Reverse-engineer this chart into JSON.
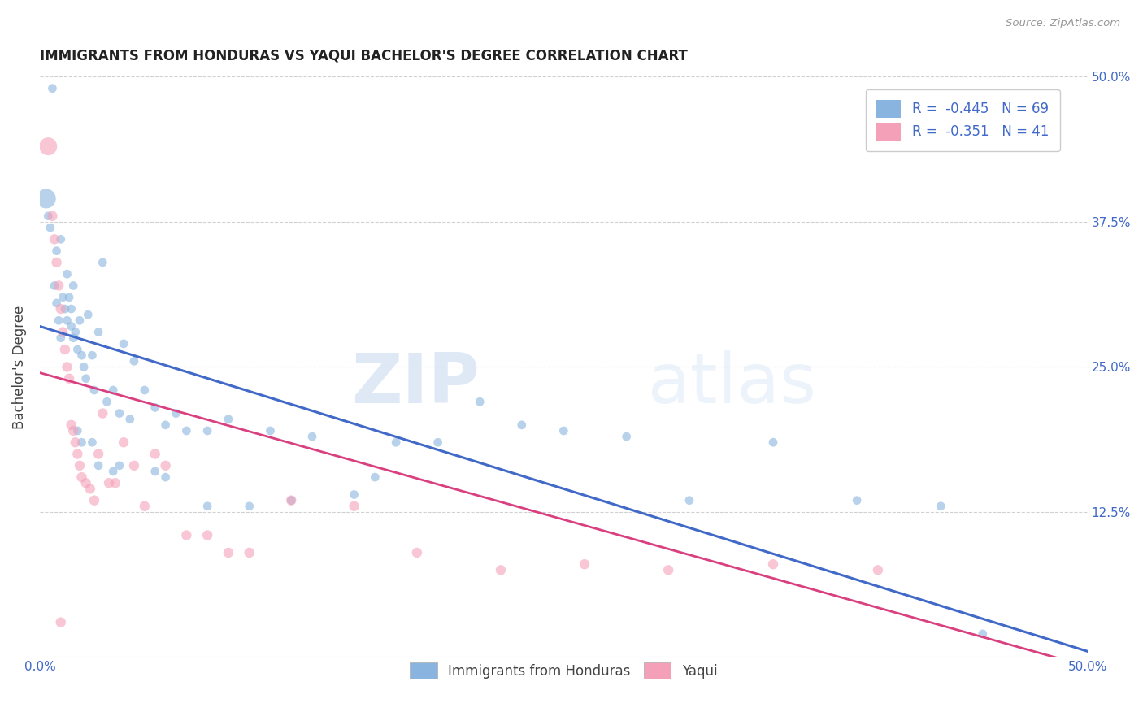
{
  "title": "IMMIGRANTS FROM HONDURAS VS YAQUI BACHELOR'S DEGREE CORRELATION CHART",
  "source": "Source: ZipAtlas.com",
  "ylabel": "Bachelor's Degree",
  "xlim": [
    0.0,
    0.5
  ],
  "ylim": [
    0.0,
    0.5
  ],
  "xticks": [
    0.0,
    0.1,
    0.2,
    0.3,
    0.4,
    0.5
  ],
  "yticks": [
    0.0,
    0.125,
    0.25,
    0.375,
    0.5
  ],
  "xticklabels": [
    "0.0%",
    "",
    "",
    "",
    "",
    "50.0%"
  ],
  "yticklabels_left": [
    "",
    "",
    "",
    "",
    ""
  ],
  "yticklabels_right": [
    "",
    "12.5%",
    "25.0%",
    "37.5%",
    "50.0%"
  ],
  "legend_r1": "-0.445",
  "legend_n1": "69",
  "legend_r2": "-0.351",
  "legend_n2": "41",
  "blue_color": "#8ab4e0",
  "pink_color": "#f4a0b8",
  "blue_line_color": "#4169c8",
  "pink_line_color": "#d94080",
  "watermark_zip": "ZIP",
  "watermark_atlas": "atlas",
  "grid_color": "#cccccc",
  "background_color": "#ffffff",
  "blue_line_y_start": 0.285,
  "blue_line_y_end": 0.005,
  "pink_line_y_start": 0.245,
  "pink_line_y_end": -0.008,
  "blue_scatter_x": [
    0.003,
    0.004,
    0.005,
    0.006,
    0.007,
    0.008,
    0.008,
    0.009,
    0.01,
    0.01,
    0.011,
    0.012,
    0.013,
    0.013,
    0.014,
    0.015,
    0.015,
    0.016,
    0.016,
    0.017,
    0.018,
    0.019,
    0.02,
    0.021,
    0.022,
    0.023,
    0.025,
    0.026,
    0.028,
    0.03,
    0.032,
    0.035,
    0.038,
    0.04,
    0.043,
    0.045,
    0.05,
    0.055,
    0.06,
    0.065,
    0.07,
    0.08,
    0.09,
    0.1,
    0.11,
    0.12,
    0.13,
    0.15,
    0.16,
    0.17,
    0.19,
    0.21,
    0.23,
    0.25,
    0.28,
    0.31,
    0.35,
    0.39,
    0.43,
    0.45,
    0.018,
    0.02,
    0.025,
    0.028,
    0.035,
    0.038,
    0.055,
    0.06,
    0.08
  ],
  "blue_scatter_y": [
    0.395,
    0.38,
    0.37,
    0.49,
    0.32,
    0.305,
    0.35,
    0.29,
    0.275,
    0.36,
    0.31,
    0.3,
    0.33,
    0.29,
    0.31,
    0.285,
    0.3,
    0.275,
    0.32,
    0.28,
    0.265,
    0.29,
    0.26,
    0.25,
    0.24,
    0.295,
    0.26,
    0.23,
    0.28,
    0.34,
    0.22,
    0.23,
    0.21,
    0.27,
    0.205,
    0.255,
    0.23,
    0.215,
    0.2,
    0.21,
    0.195,
    0.195,
    0.205,
    0.13,
    0.195,
    0.135,
    0.19,
    0.14,
    0.155,
    0.185,
    0.185,
    0.22,
    0.2,
    0.195,
    0.19,
    0.135,
    0.185,
    0.135,
    0.13,
    0.02,
    0.195,
    0.185,
    0.185,
    0.165,
    0.16,
    0.165,
    0.16,
    0.155,
    0.13
  ],
  "blue_scatter_size": [
    300,
    60,
    60,
    60,
    60,
    60,
    60,
    60,
    60,
    60,
    60,
    60,
    60,
    60,
    60,
    60,
    60,
    60,
    60,
    60,
    60,
    60,
    60,
    60,
    60,
    60,
    60,
    60,
    60,
    60,
    60,
    60,
    60,
    60,
    60,
    60,
    60,
    60,
    60,
    60,
    60,
    60,
    60,
    60,
    60,
    60,
    60,
    60,
    60,
    60,
    60,
    60,
    60,
    60,
    60,
    60,
    60,
    60,
    60,
    60,
    60,
    60,
    60,
    60,
    60,
    60,
    60,
    60,
    60
  ],
  "pink_scatter_x": [
    0.004,
    0.006,
    0.007,
    0.008,
    0.009,
    0.01,
    0.011,
    0.012,
    0.013,
    0.014,
    0.015,
    0.016,
    0.017,
    0.018,
    0.019,
    0.02,
    0.022,
    0.024,
    0.026,
    0.028,
    0.03,
    0.033,
    0.036,
    0.04,
    0.045,
    0.05,
    0.055,
    0.06,
    0.07,
    0.08,
    0.09,
    0.1,
    0.12,
    0.15,
    0.18,
    0.22,
    0.26,
    0.3,
    0.35,
    0.4,
    0.01
  ],
  "pink_scatter_y": [
    0.44,
    0.38,
    0.36,
    0.34,
    0.32,
    0.3,
    0.28,
    0.265,
    0.25,
    0.24,
    0.2,
    0.195,
    0.185,
    0.175,
    0.165,
    0.155,
    0.15,
    0.145,
    0.135,
    0.175,
    0.21,
    0.15,
    0.15,
    0.185,
    0.165,
    0.13,
    0.175,
    0.165,
    0.105,
    0.105,
    0.09,
    0.09,
    0.135,
    0.13,
    0.09,
    0.075,
    0.08,
    0.075,
    0.08,
    0.075,
    0.03
  ],
  "pink_scatter_size": [
    250,
    80,
    80,
    80,
    80,
    80,
    80,
    80,
    80,
    80,
    80,
    80,
    80,
    80,
    80,
    80,
    80,
    80,
    80,
    80,
    80,
    80,
    80,
    80,
    80,
    80,
    80,
    80,
    80,
    80,
    80,
    80,
    80,
    80,
    80,
    80,
    80,
    80,
    80,
    80,
    80
  ]
}
